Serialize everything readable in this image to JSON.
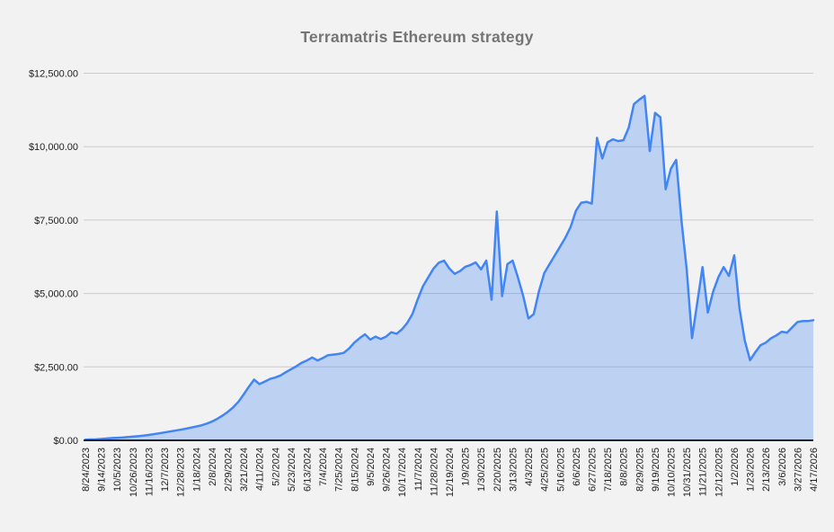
{
  "page": {
    "background": "#f2f2f2"
  },
  "chart_data": {
    "type": "area",
    "title": "Terramatris Ethereum strategy",
    "xlabel": "",
    "ylabel": "",
    "legend": "none",
    "grid": true,
    "y_min": 0,
    "y_max": 12500,
    "y_tick_step": 2500,
    "y_tick_labels": [
      "$0.00",
      "$2,500.00",
      "$5,000.00",
      "$7,500.00",
      "$10,000.00",
      "$12,500.00"
    ],
    "x_label_every_n_points": 3,
    "x_tick_labels": [
      "8/24/2023",
      "9/14/2023",
      "10/5/2023",
      "10/26/2023",
      "11/16/2023",
      "12/7/2023",
      "12/28/2023",
      "1/18/2024",
      "2/8/2024",
      "2/29/2024",
      "3/21/2024",
      "4/11/2024",
      "5/2/2024",
      "5/23/2024",
      "6/13/2024",
      "7/4/2024",
      "7/25/2024",
      "8/15/2024",
      "9/5/2024",
      "9/26/2024",
      "10/17/2024",
      "11/7/2024",
      "11/28/2024",
      "12/19/2024",
      "1/9/2025",
      "1/30/2025",
      "2/20/2025",
      "3/13/2025",
      "4/3/2025",
      "4/25/2025",
      "5/16/2025",
      "6/6/2025",
      "6/27/2025",
      "7/18/2025",
      "8/8/2025",
      "8/29/2025",
      "9/19/2025",
      "10/10/2025",
      "10/31/2025",
      "11/21/2025",
      "12/12/2025",
      "1/2/2026",
      "1/23/2026",
      "2/13/2026",
      "3/6/2026",
      "3/27/2026",
      "4/17/2026"
    ],
    "series": [
      {
        "values": [
          25,
          30,
          35,
          45,
          60,
          75,
          85,
          95,
          110,
          125,
          140,
          160,
          185,
          210,
          240,
          270,
          300,
          330,
          360,
          395,
          430,
          470,
          510,
          570,
          640,
          730,
          840,
          970,
          1120,
          1310,
          1560,
          1830,
          2070,
          1915,
          2000,
          2090,
          2140,
          2210,
          2320,
          2420,
          2520,
          2640,
          2720,
          2820,
          2720,
          2800,
          2900,
          2920,
          2940,
          2980,
          3130,
          3330,
          3480,
          3610,
          3430,
          3530,
          3450,
          3530,
          3680,
          3630,
          3780,
          3990,
          4300,
          4800,
          5250,
          5550,
          5850,
          6050,
          6120,
          5850,
          5670,
          5760,
          5910,
          5970,
          6060,
          5820,
          6120,
          4790,
          7790,
          4910,
          6000,
          6120,
          5545,
          4910,
          4150,
          4300,
          5090,
          5700,
          6000,
          6300,
          6600,
          6900,
          7270,
          7820,
          8090,
          8120,
          8060,
          10300,
          9600,
          10150,
          10250,
          10190,
          10220,
          10650,
          11450,
          11600,
          11730,
          9850,
          11150,
          11000,
          8550,
          9250,
          9550,
          7480,
          5820,
          3480,
          4700,
          5900,
          4350,
          5060,
          5550,
          5900,
          5600,
          6300,
          4500,
          3400,
          2730,
          3000,
          3240,
          3330,
          3480,
          3575,
          3700,
          3670,
          3850,
          4030,
          4060,
          4060,
          4090
        ]
      }
    ],
    "colors": {
      "line": "#4285f4",
      "fill": "rgba(66,133,244,0.30)",
      "gridline": "#cbcbcb",
      "axis_line": "#212121",
      "title": "#757575",
      "tick_label": "#202124",
      "background": "#f2f2f2"
    }
  }
}
